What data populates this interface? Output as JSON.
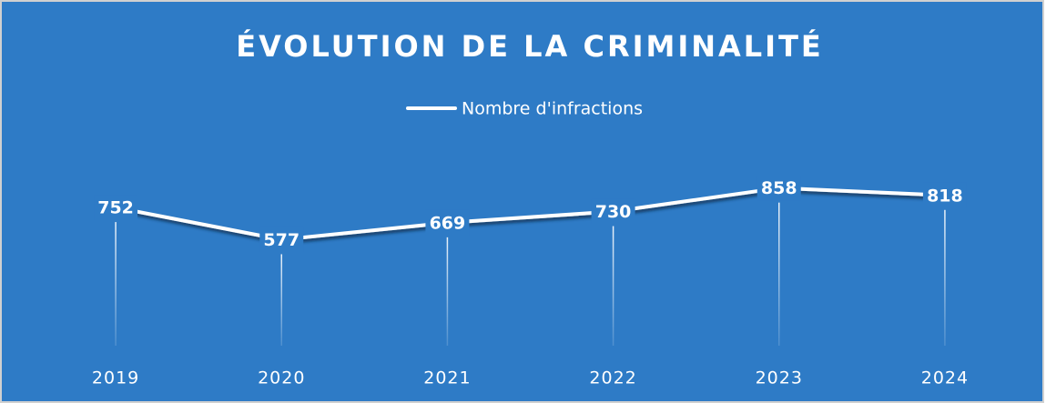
{
  "chart_data": {
    "type": "line",
    "title": "ÉVOLUTION DE LA CRIMINALITÉ",
    "categories": [
      "2019",
      "2020",
      "2021",
      "2022",
      "2023",
      "2024"
    ],
    "series": [
      {
        "name": "Nombre d'infractions",
        "color": "#ffffff",
        "values": [
          752,
          577,
          669,
          730,
          858,
          818
        ]
      }
    ],
    "ylim": [
      0,
      1000
    ],
    "drop_lines": true,
    "data_labels": true,
    "background": "#2e7bc6"
  }
}
